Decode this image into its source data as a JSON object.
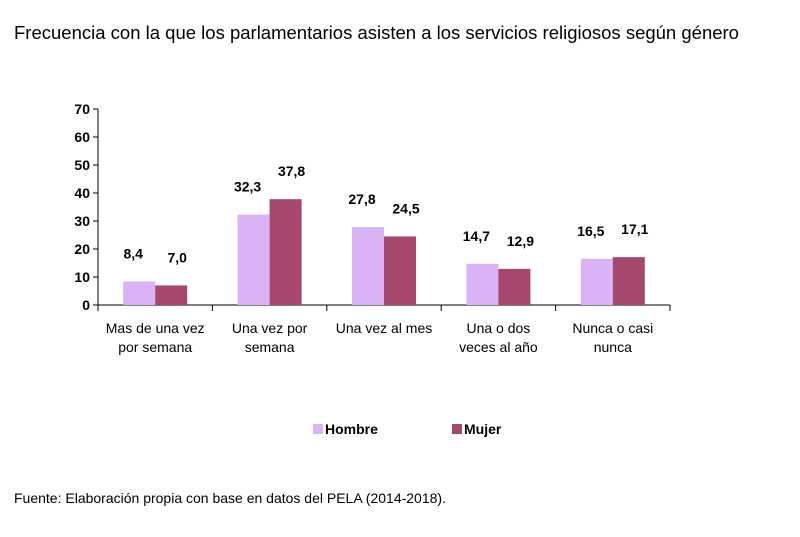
{
  "title": "Frecuencia con la que los parlamentarios asisten a los servicios religiosos según género",
  "source": "Fuente: Elaboración propia con base en datos del PELA (2014-2018).",
  "colors": {
    "hombre": "#d9b3f5",
    "mujer": "#a6476e",
    "axis": "#000000"
  },
  "chart_data": {
    "type": "bar",
    "title": "Frecuencia con la que los parlamentarios asisten a los servicios religiosos según género",
    "categories": [
      [
        "Mas de una vez",
        "por semana"
      ],
      [
        "Una vez por",
        "semana"
      ],
      [
        "Una vez al mes"
      ],
      [
        "Una o dos",
        "veces al año"
      ],
      [
        "Nunca o casi",
        "nunca"
      ]
    ],
    "series": [
      {
        "name": "Hombre",
        "values": [
          8.4,
          32.3,
          27.8,
          14.7,
          16.5
        ],
        "labels": [
          "8,4",
          "32,3",
          "27,8",
          "14,7",
          "16,5"
        ]
      },
      {
        "name": "Mujer",
        "values": [
          7.0,
          37.8,
          24.5,
          12.9,
          17.1
        ],
        "labels": [
          "7,0",
          "37,8",
          "24,5",
          "12,9",
          "17,1"
        ]
      }
    ],
    "ylim": [
      0,
      70
    ],
    "yticks": [
      0,
      10,
      20,
      30,
      40,
      50,
      60,
      70
    ],
    "grid": false,
    "legend": "bottom",
    "xlabel": "",
    "ylabel": ""
  }
}
